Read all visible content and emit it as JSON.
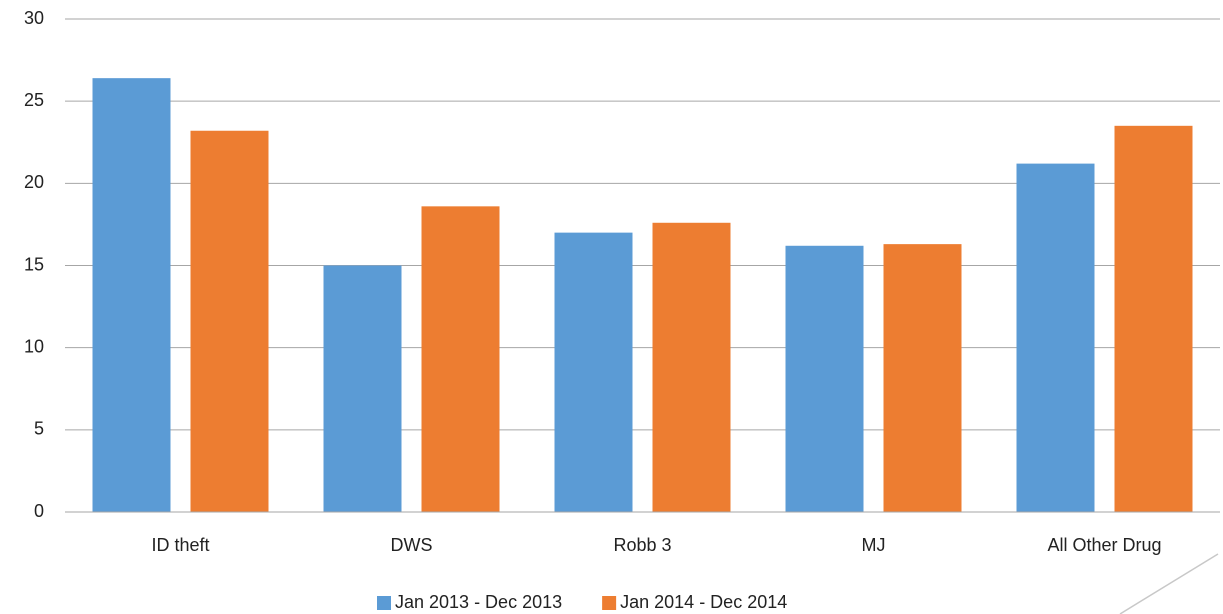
{
  "chart_data": {
    "type": "bar",
    "categories": [
      "ID theft",
      "DWS",
      "Robb 3",
      "MJ",
      "All Other Drug"
    ],
    "series": [
      {
        "name": "Jan 2013 - Dec 2013",
        "color": "#5b9bd5",
        "values": [
          26.4,
          15.0,
          17.0,
          16.2,
          21.2
        ]
      },
      {
        "name": "Jan 2014 - Dec 2014",
        "color": "#ed7d31",
        "values": [
          23.2,
          18.6,
          17.6,
          16.3,
          23.5
        ]
      }
    ],
    "ylim": [
      0,
      30
    ],
    "yticks": [
      0,
      5,
      10,
      15,
      20,
      25,
      30
    ],
    "grid": true,
    "legend": "bottom"
  }
}
